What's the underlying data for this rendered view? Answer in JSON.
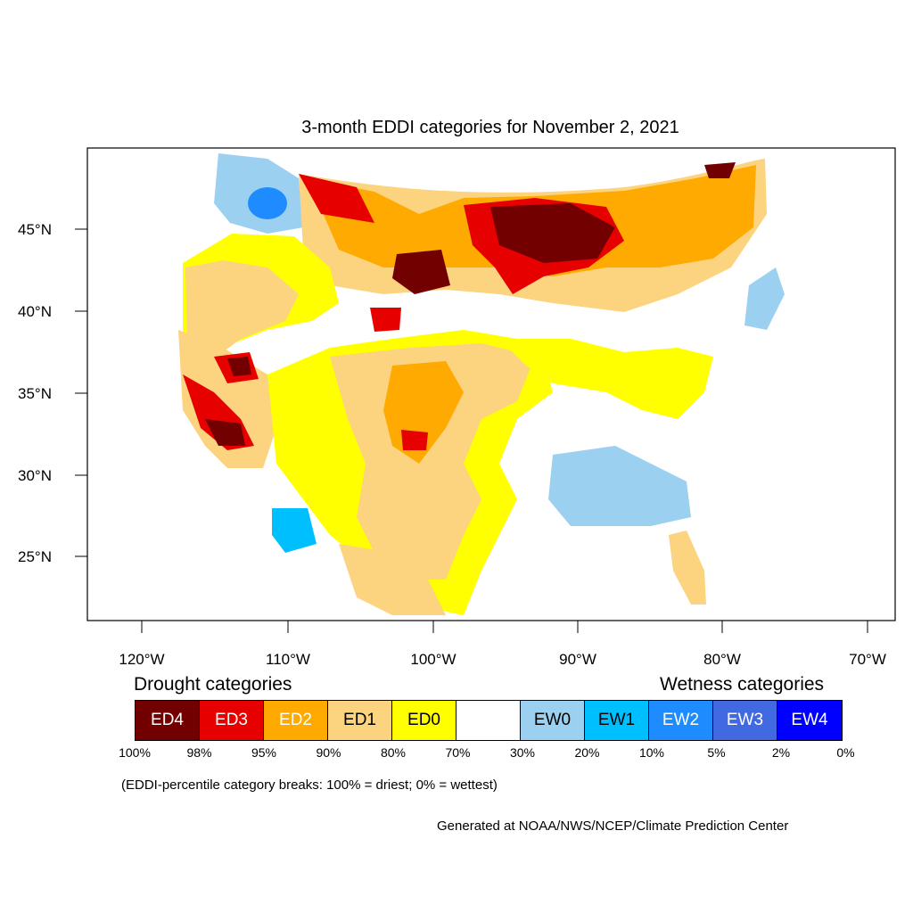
{
  "title": "3-month EDDI categories for November 2, 2021",
  "axes": {
    "lat_labels": [
      "45°N",
      "40°N",
      "35°N",
      "30°N",
      "25°N"
    ],
    "lon_labels": [
      "120°W",
      "110°W",
      "100°W",
      "90°W",
      "80°W",
      "70°W"
    ]
  },
  "legend": {
    "drought_heading": "Drought categories",
    "wetness_heading": "Wetness categories",
    "categories": [
      {
        "label": "ED4",
        "color": "#730000",
        "text_color": "#ffffff"
      },
      {
        "label": "ED3",
        "color": "#e60000",
        "text_color": "#ffffff"
      },
      {
        "label": "ED2",
        "color": "#ffaa00",
        "text_color": "#ffffff"
      },
      {
        "label": "ED1",
        "color": "#fcd37f",
        "text_color": "#000000"
      },
      {
        "label": "ED0",
        "color": "#ffff00",
        "text_color": "#000000"
      },
      {
        "label": "",
        "color": "#ffffff",
        "text_color": "#000000"
      },
      {
        "label": "EW0",
        "color": "#9bd0f0",
        "text_color": "#000000"
      },
      {
        "label": "EW1",
        "color": "#00bfff",
        "text_color": "#000000"
      },
      {
        "label": "EW2",
        "color": "#1e8cff",
        "text_color": "#ffffff"
      },
      {
        "label": "EW3",
        "color": "#4169e1",
        "text_color": "#ffffff"
      },
      {
        "label": "EW4",
        "color": "#0000ff",
        "text_color": "#ffffff"
      }
    ],
    "breaks": [
      "100%",
      "98%",
      "95%",
      "90%",
      "80%",
      "70%",
      "30%",
      "20%",
      "10%",
      "5%",
      "2%",
      "0%"
    ]
  },
  "note": "(EDDI-percentile category breaks: 100% = driest; 0% = wettest)",
  "credit": "Generated at NOAA/NWS/NCEP/Climate Prediction Center"
}
